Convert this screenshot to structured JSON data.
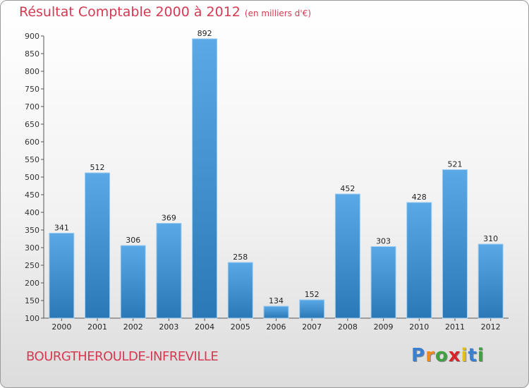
{
  "chart_data": {
    "type": "bar",
    "title": "Résultat Comptable 2000 à 2012",
    "subtitle": "(en milliers d'€)",
    "categories": [
      "2000",
      "2001",
      "2002",
      "2003",
      "2004",
      "2005",
      "2006",
      "2007",
      "2008",
      "2009",
      "2010",
      "2011",
      "2012"
    ],
    "values": [
      341,
      512,
      306,
      369,
      892,
      258,
      134,
      152,
      452,
      303,
      428,
      521,
      310
    ],
    "ylim": [
      100,
      900
    ],
    "yticks": [
      100,
      150,
      200,
      250,
      300,
      350,
      400,
      450,
      500,
      550,
      600,
      650,
      700,
      750,
      800,
      850,
      900
    ],
    "xlabel": "",
    "ylabel": "",
    "grid": false
  },
  "commune": "BOURGTHEROULDE-INFREVILLE",
  "logo": {
    "letters": [
      "P",
      "r",
      "o",
      "x",
      "i",
      "t",
      "i"
    ],
    "colors": [
      "#3a7fd0",
      "#f08a1a",
      "#3fa142",
      "#d8242a",
      "#e0c01a",
      "#3a7fd0",
      "#3fa142"
    ]
  },
  "colors": {
    "bar_top": "#5aa9e6",
    "bar_bottom": "#2b78b6",
    "accent": "#d43a52"
  }
}
